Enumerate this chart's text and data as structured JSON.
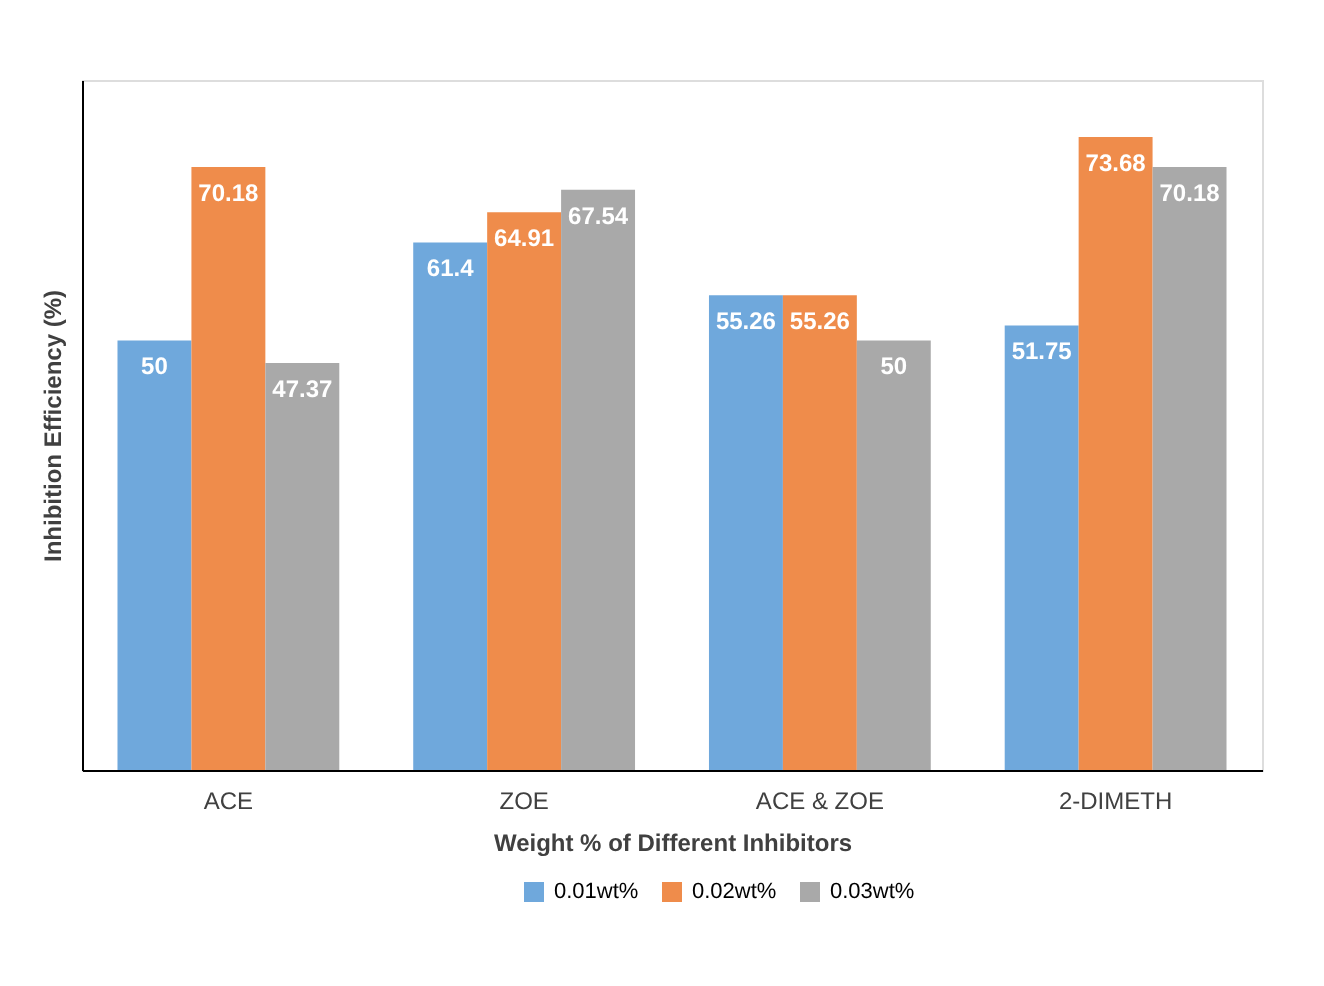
{
  "chart_data": {
    "type": "bar",
    "xlabel": "Weight % of Different Inhibitors",
    "ylabel": "Inhibition Efficiency (%)",
    "categories": [
      "ACE",
      "ZOE",
      "ACE & ZOE",
      "2-DIMETH"
    ],
    "series": [
      {
        "name": "0.01wt%",
        "color": "#6fa8dc",
        "values": [
          50,
          61.4,
          55.26,
          51.75
        ]
      },
      {
        "name": "0.02wt%",
        "color": "#ef8c4b",
        "values": [
          70.18,
          64.91,
          55.26,
          73.68
        ]
      },
      {
        "name": "0.03wt%",
        "color": "#a9a9a9",
        "values": [
          47.37,
          67.54,
          50,
          70.18
        ]
      }
    ],
    "data_labels": true,
    "legend": "bottom",
    "grid": false,
    "tick_labels": "x"
  }
}
